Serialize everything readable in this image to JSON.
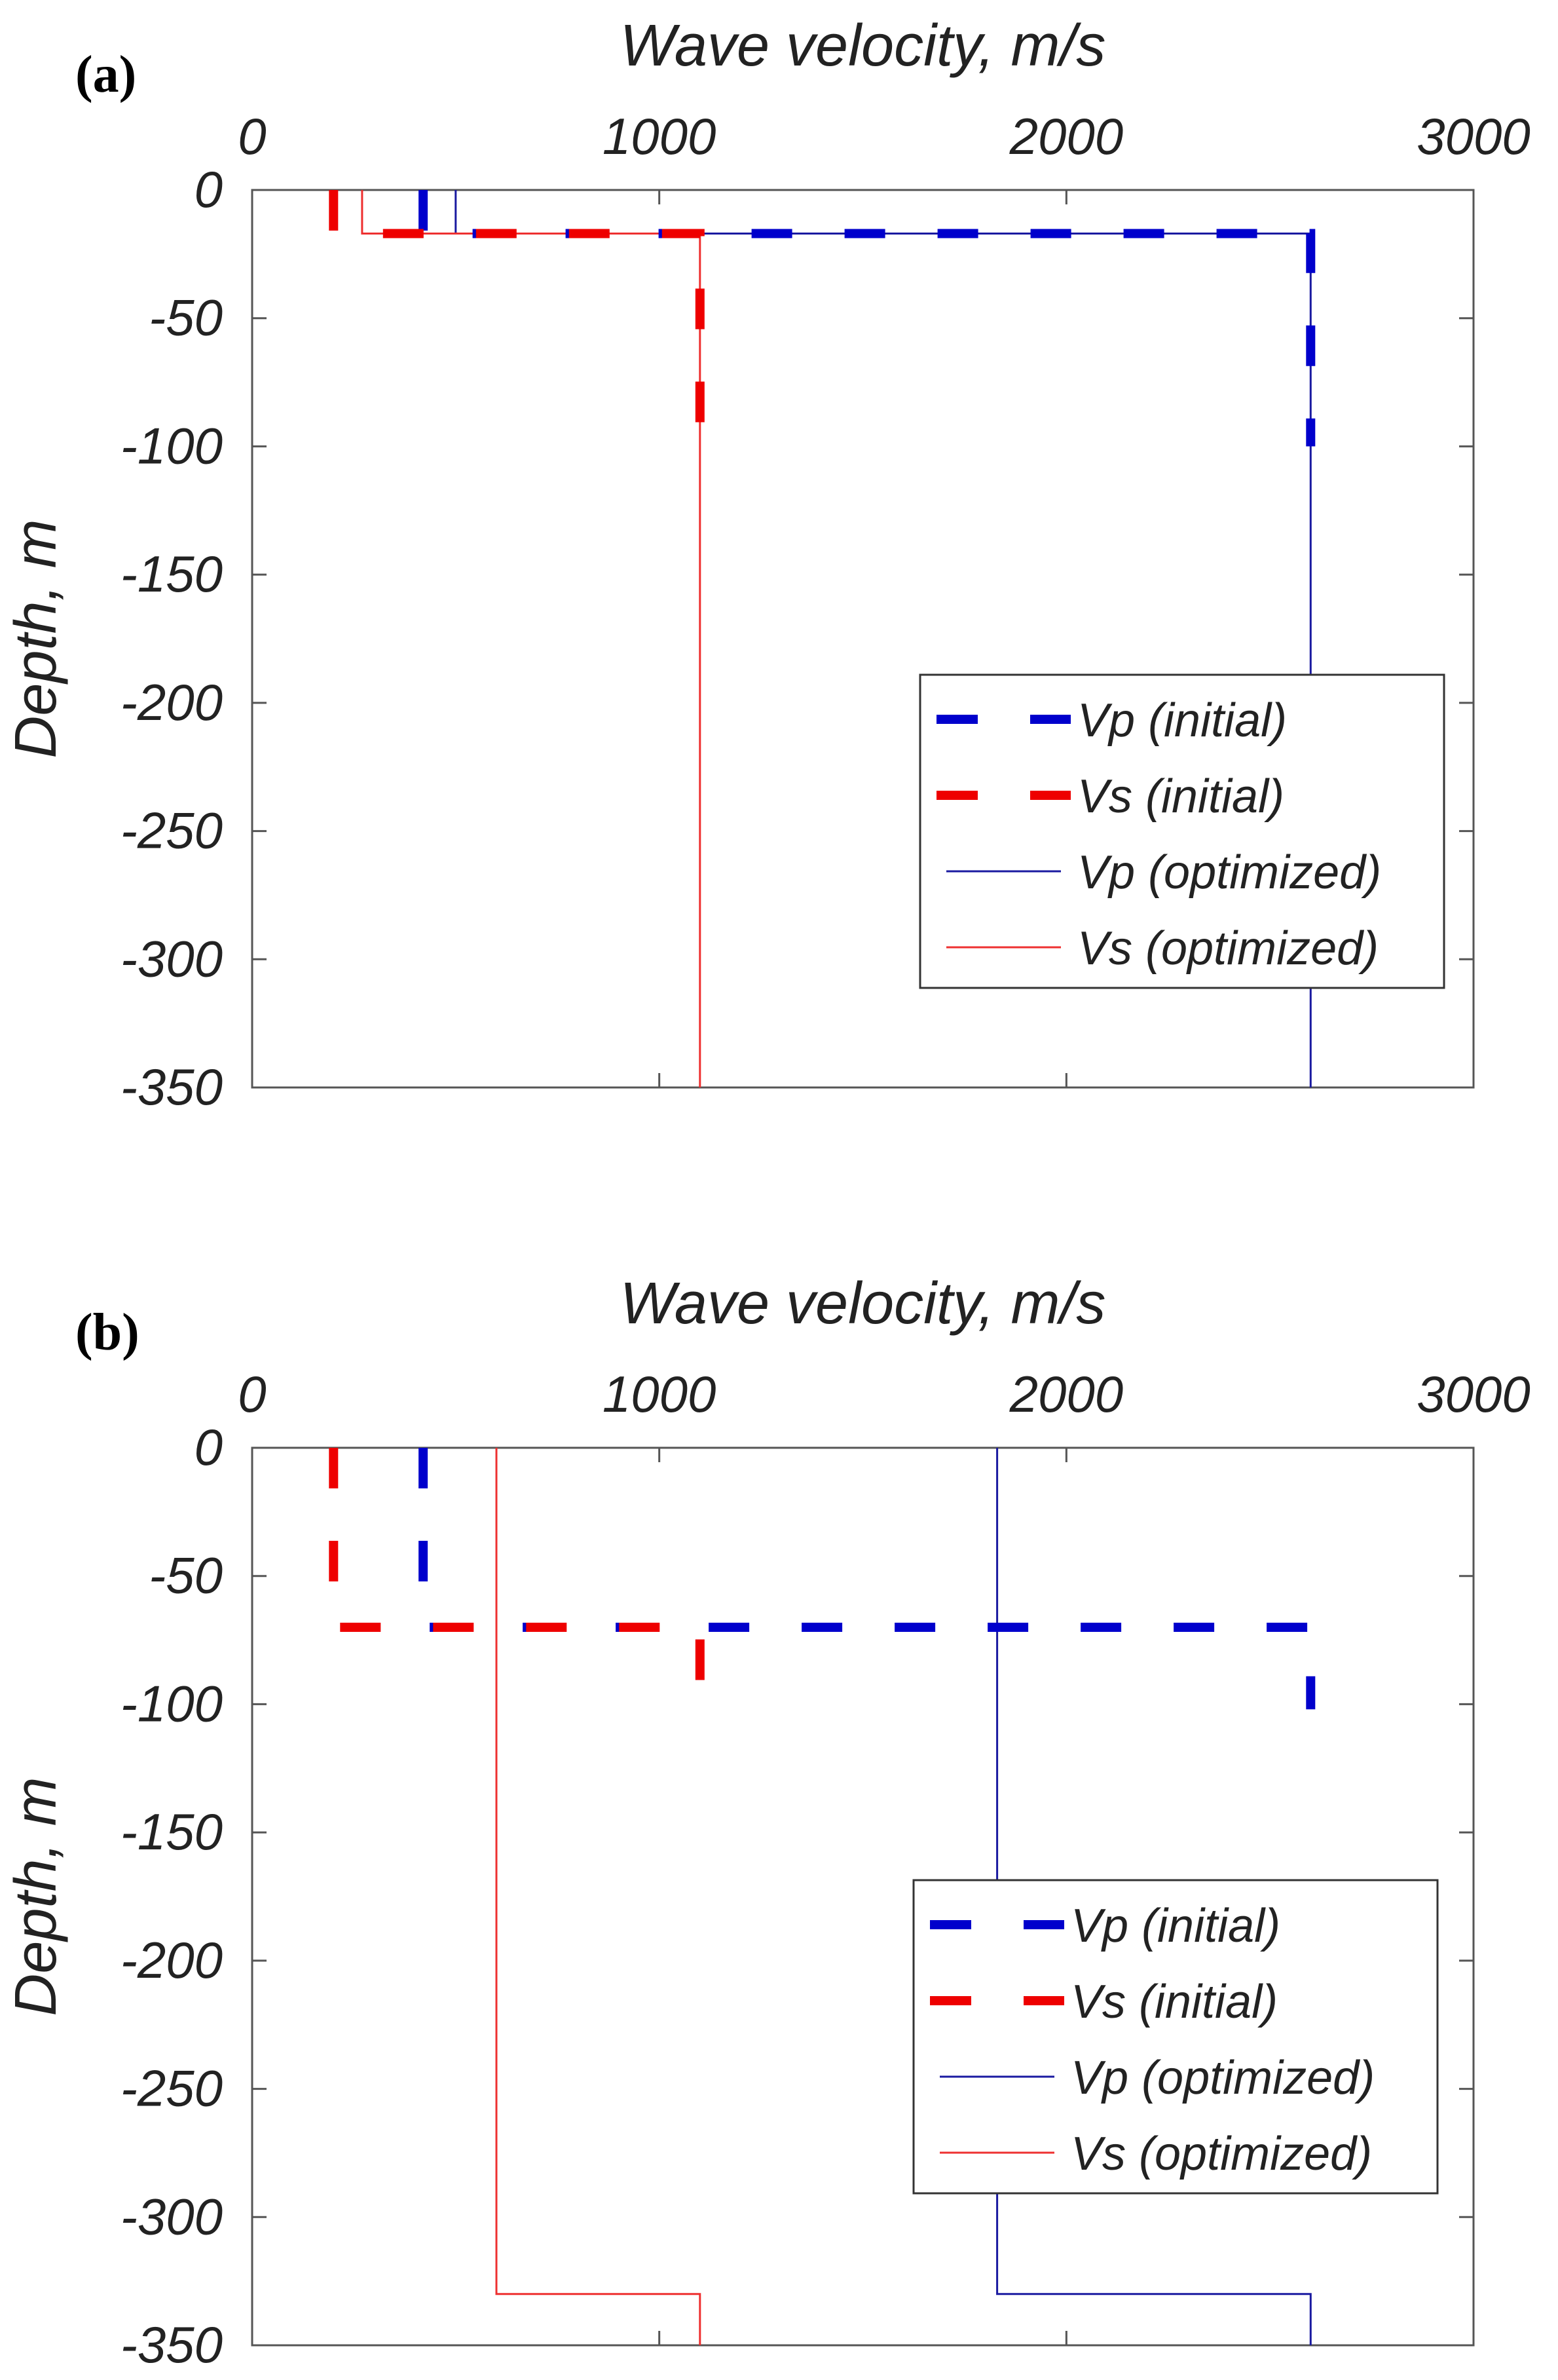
{
  "chart_data": [
    {
      "type": "line",
      "panel_label": "(a)",
      "xlabel": "Wave velocity, m/s",
      "ylabel": "Depth, m",
      "xlim": [
        0,
        3000
      ],
      "ylim": [
        -350,
        0
      ],
      "xticks": [
        "0",
        "1000",
        "2000",
        "3000"
      ],
      "yticks": [
        "0",
        "-50",
        "-100",
        "-150",
        "-200",
        "-250",
        "-300",
        "-350"
      ],
      "legend_position": "lower-right",
      "series": [
        {
          "name": "Vp (initial)",
          "style": "dashed",
          "color": "#0000cc",
          "points": [
            [
              420,
              0
            ],
            [
              420,
              -17
            ],
            [
              2600,
              -17
            ],
            [
              2600,
              -100
            ]
          ]
        },
        {
          "name": "Vs (initial)",
          "style": "dashed",
          "color": "#ee0000",
          "points": [
            [
              200,
              0
            ],
            [
              200,
              -17
            ],
            [
              1100,
              -17
            ],
            [
              1100,
              -95
            ]
          ]
        },
        {
          "name": "Vp (optimized)",
          "style": "solid",
          "color": "#1a1aa0",
          "points": [
            [
              500,
              0
            ],
            [
              500,
              -17
            ],
            [
              2600,
              -17
            ],
            [
              2600,
              -350
            ]
          ]
        },
        {
          "name": "Vs (optimized)",
          "style": "solid",
          "color": "#ee3030",
          "points": [
            [
              270,
              0
            ],
            [
              270,
              -17
            ],
            [
              1100,
              -17
            ],
            [
              1100,
              -350
            ]
          ]
        }
      ]
    },
    {
      "type": "line",
      "panel_label": "(b)",
      "xlabel": "Wave velocity, m/s",
      "ylabel": "Depth, m",
      "xlim": [
        0,
        3000
      ],
      "ylim": [
        -350,
        0
      ],
      "xticks": [
        "0",
        "1000",
        "2000",
        "3000"
      ],
      "yticks": [
        "0",
        "-50",
        "-100",
        "-150",
        "-200",
        "-250",
        "-300",
        "-350"
      ],
      "legend_position": "lower-right",
      "series": [
        {
          "name": "Vp (initial)",
          "style": "dashed",
          "color": "#0000cc",
          "points": [
            [
              420,
              0
            ],
            [
              420,
              -70
            ],
            [
              2600,
              -70
            ],
            [
              2600,
              -102
            ]
          ]
        },
        {
          "name": "Vs (initial)",
          "style": "dashed",
          "color": "#ee0000",
          "points": [
            [
              200,
              0
            ],
            [
              200,
              -70
            ],
            [
              1100,
              -70
            ],
            [
              1100,
              -95
            ]
          ]
        },
        {
          "name": "Vp (optimized)",
          "style": "solid",
          "color": "#1a1aa0",
          "points": [
            [
              1830,
              0
            ],
            [
              1830,
              -330
            ],
            [
              2600,
              -330
            ],
            [
              2600,
              -350
            ]
          ]
        },
        {
          "name": "Vs (optimized)",
          "style": "solid",
          "color": "#ee3030",
          "points": [
            [
              600,
              0
            ],
            [
              600,
              -330
            ],
            [
              1100,
              -330
            ],
            [
              1100,
              -350
            ]
          ]
        }
      ]
    }
  ]
}
